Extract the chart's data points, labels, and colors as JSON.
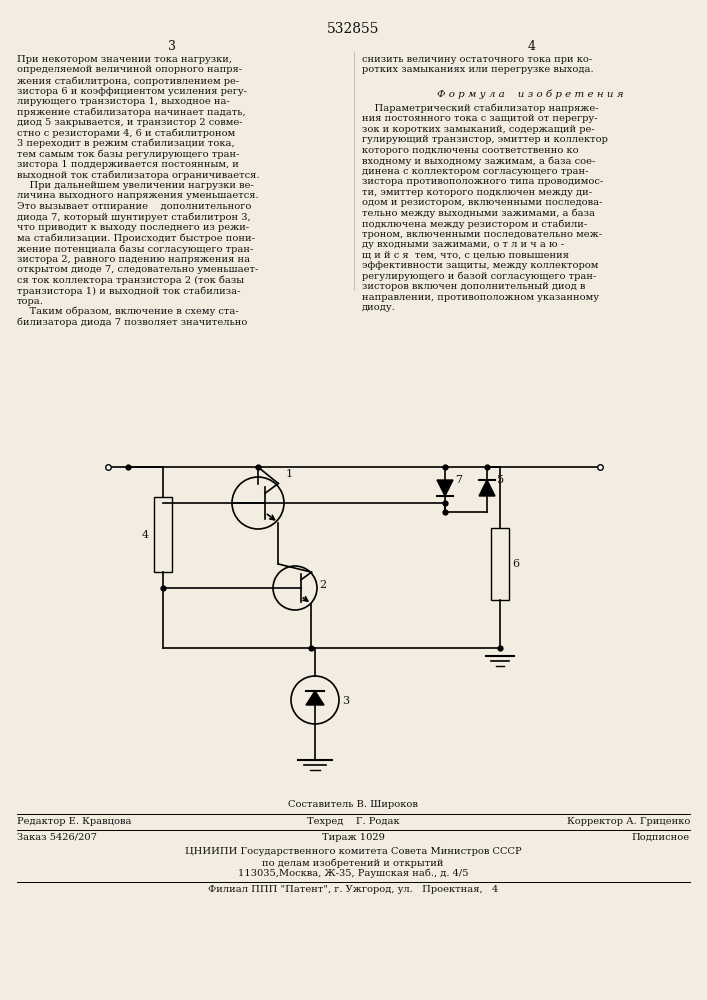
{
  "patent_number": "532855",
  "bg_color": "#f2ede0",
  "text_color": "#111111",
  "left_text": [
    "При некотором значении тока нагрузки,",
    "определяемой величиной опорного напря-",
    "жения стабилитрона, сопротивлением ре-",
    "зистора 6 и коэффициентом усиления регу-",
    "лирующего транзистора 1, выходное на-",
    "пряжение стабилизатора начинает падать,",
    "диод 5 закрывается, и транзистор 2 совме-",
    "стно с резисторами 4, 6 и стабилитроном",
    "3 переходит в режим стабилизации тока,",
    "тем самым ток базы регулирующего тран-",
    "зистора 1 поддерживается постоянным, и",
    "выходной ток стабилизатора ограничивается.",
    "    При дальнейшем увеличении нагрузки ве-",
    "личина выходного напряжения уменьшается.",
    "Это вызывает отпирание    дополнительного",
    "диода 7, который шунтирует стабилитрон 3,",
    "что приводит к выходу последнего из режи-",
    "ма стабилизации. Происходит быстрое пони-",
    "жение потенциала базы согласующего тран-",
    "зистора 2, равного падению напряжения на",
    "открытом диоде 7, следовательно уменьшает-",
    "ся ток коллектора транзистора 2 (ток базы",
    "транзистора 1) и выходной ток стабилиза-",
    "тора.",
    "    Таким образом, включение в схему ста-",
    "билизатора диода 7 позволяет значительно"
  ],
  "right_top_text": [
    "снизить величину остаточного тока при ко-",
    "ротких замыканиях или перегрузке выхода."
  ],
  "formula_header": "Ф о р м у л а    и з о б р е т е н и я",
  "formula_text": [
    "    Параметрический стабилизатор напряже-",
    "ния постоянного тока с защитой от перегру-",
    "зок и коротких замыканий, содержащий ре-",
    "гулирующий транзистор, эмиттер и коллектор",
    "которого подключены соответственно ко",
    "входному и выходному зажимам, а база сое-",
    "динена с коллектором согласующего тран-",
    "зистора противоположного типа проводимос-",
    "ти, эмиттер которого подключен между ди-",
    "одом и резистором, включенными последова-",
    "тельно между выходными зажимами, а база",
    "подключена между резистором и стабили-",
    "троном, включенными последовательно меж-",
    "ду входными зажимами, о т л и ч а ю -",
    "щ и й с я  тем, что, с целью повышения",
    "эффективности защиты, между коллектором",
    "регулирующего и базой согласующего тран-",
    "зисторов включен дополнительный диод в",
    "направлении, противоположном указанному",
    "диоду."
  ],
  "footer_sostavitel": "Составитель В. Широков",
  "footer_redaktor": "Редактор Е. Кравцова",
  "footer_tehred": "Техред    Г. Родак",
  "footer_korrektor": "Корректор А. Гриценко",
  "footer_zakaz": "Заказ 5426/207",
  "footer_tirazh": "Тираж 1029",
  "footer_podpisnoe": "Подписное",
  "footer_cniipI": "ЦНИИПИ Государственного комитета Совета Министров СССР",
  "footer_podelam": "по делам изобретений и открытий",
  "footer_address": "113035,Москва, Ж-35, Раушская наб., д. 4/5",
  "footer_filial": "Филиал ППП \"Патент\", г. Ужгород, ул.   Проектная,   4"
}
